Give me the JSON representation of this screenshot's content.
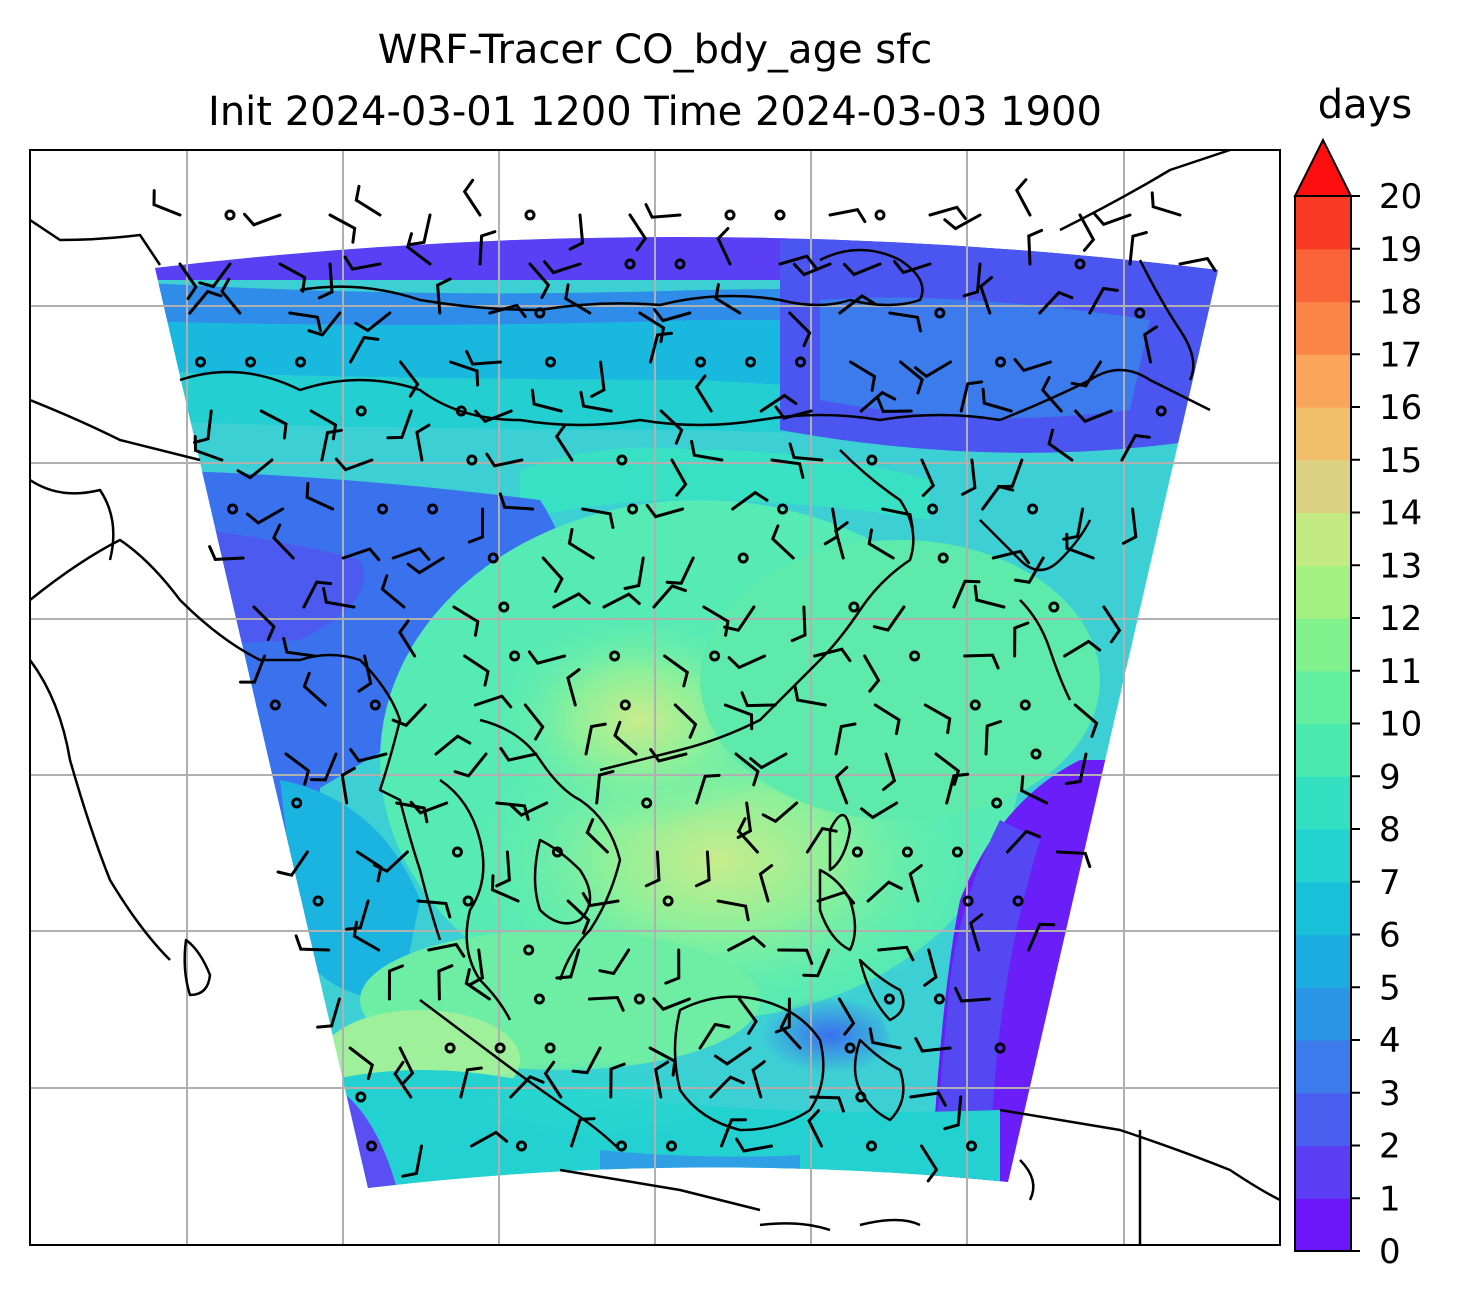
{
  "title": {
    "line1": "WRF-Tracer CO_bdy_age sfc",
    "line2": "Init 2024-03-01 1200 Time 2024-03-03 1900"
  },
  "colorbar": {
    "units": "days",
    "ticks": [
      "0",
      "1",
      "2",
      "3",
      "4",
      "5",
      "6",
      "7",
      "8",
      "9",
      "10",
      "11",
      "12",
      "13",
      "14",
      "15",
      "16",
      "17",
      "18",
      "19",
      "20"
    ],
    "extend": "max",
    "colors": [
      "#6e16fa",
      "#5c3ef5",
      "#4a5ff0",
      "#3b7beb",
      "#2b95e6",
      "#1cace0",
      "#18c0da",
      "#22d3d0",
      "#33e1c2",
      "#4ae9b0",
      "#64efa0",
      "#82f28f",
      "#a3f281",
      "#c4ea84",
      "#ddd282",
      "#f1bf6c",
      "#f9a65a",
      "#fb8548",
      "#fb6339",
      "#f93b25",
      "#f5120d"
    ],
    "extend_color": "#fe0e0e"
  },
  "map": {
    "region": "South and Southeast Asia",
    "field": "CO_bdy_age",
    "level": "sfc",
    "overlays": [
      "coastlines",
      "gridlines",
      "wind barbs"
    ],
    "gridlines": true
  }
}
